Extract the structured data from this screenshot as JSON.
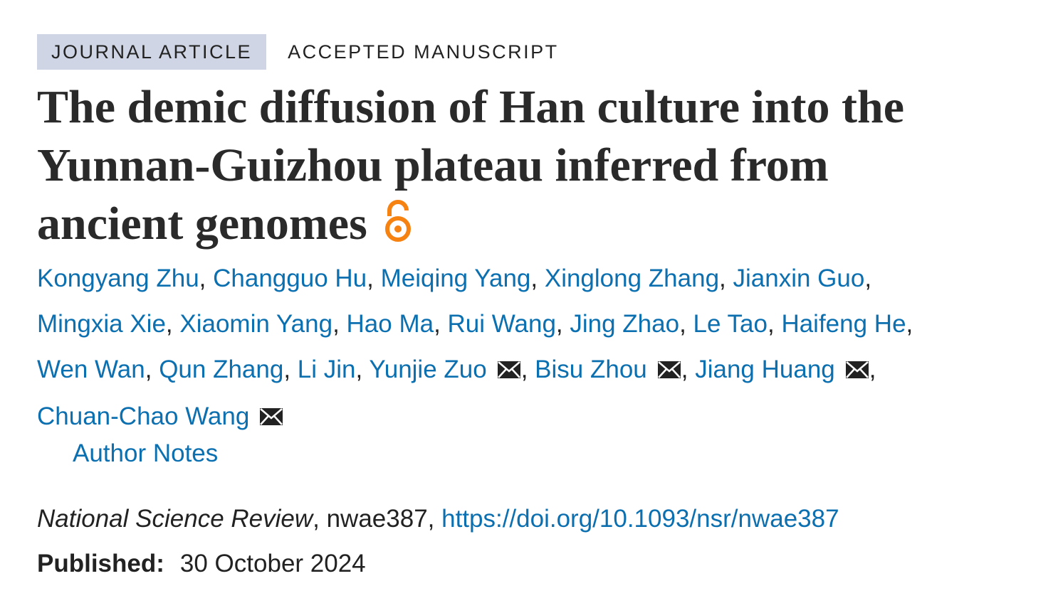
{
  "tags": {
    "type": "JOURNAL ARTICLE",
    "status": "ACCEPTED MANUSCRIPT"
  },
  "title_lines": [
    "The demic diffusion of Han culture into the",
    "Yunnan-Guizhou plateau inferred from",
    "ancient genomes"
  ],
  "open_access_icon": "open-access-lock-icon",
  "colors": {
    "link": "#0b6fb0",
    "tag_bg": "#cfd5e4",
    "open_access": "#f68212"
  },
  "authors": [
    {
      "name": "Kongyang Zhu"
    },
    {
      "name": "Changguo Hu"
    },
    {
      "name": "Meiqing Yang"
    },
    {
      "name": "Xinglong Zhang"
    },
    {
      "name": "Jianxin Guo"
    },
    {
      "name": "Mingxia Xie"
    },
    {
      "name": "Xiaomin Yang"
    },
    {
      "name": "Hao Ma"
    },
    {
      "name": "Rui Wang"
    },
    {
      "name": "Jing Zhao"
    },
    {
      "name": "Le Tao"
    },
    {
      "name": "Haifeng He"
    },
    {
      "name": "Wen Wan"
    },
    {
      "name": "Qun Zhang"
    },
    {
      "name": "Li Jin"
    },
    {
      "name": "Yunjie Zuo",
      "corresponding": true
    },
    {
      "name": "Bisu Zhou",
      "corresponding": true
    },
    {
      "name": "Jiang Huang",
      "corresponding": true
    },
    {
      "name": "Chuan-Chao Wang",
      "corresponding": true
    }
  ],
  "author_notes": "Author Notes",
  "citation": {
    "journal": "National Science Review",
    "id": ", nwae387, ",
    "doi": "https://doi.org/10.1093/nsr/nwae387"
  },
  "published": {
    "label": "Published:",
    "date": "30 October 2024"
  }
}
